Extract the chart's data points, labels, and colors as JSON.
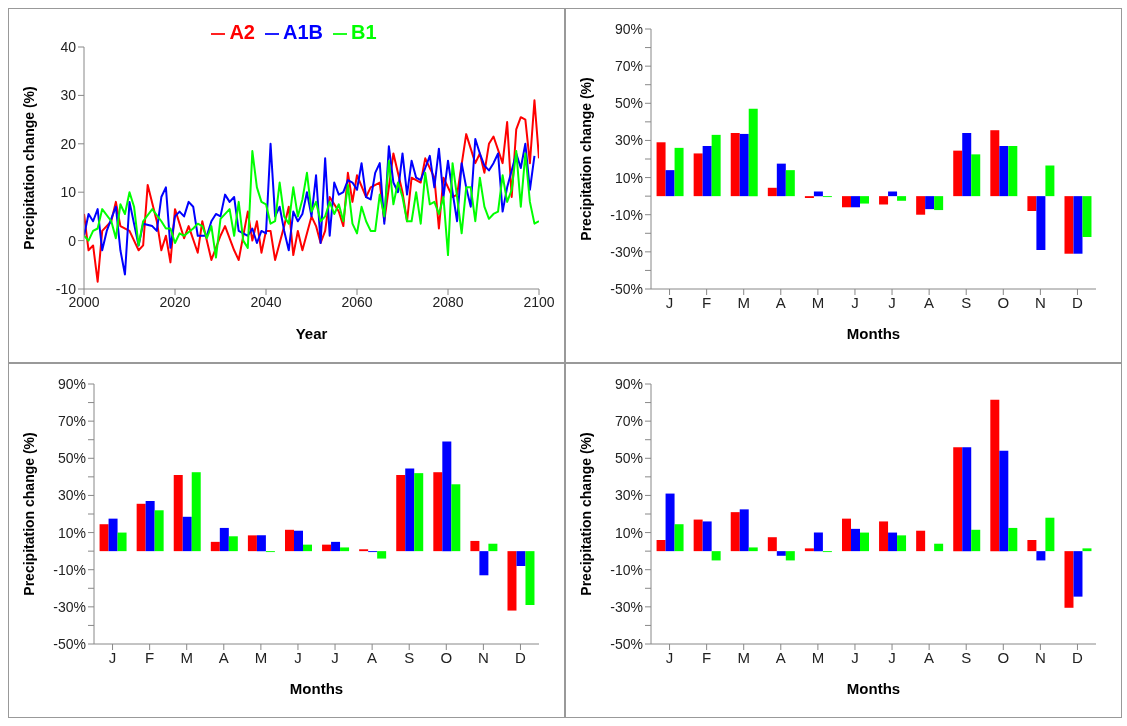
{
  "chart_data": [
    {
      "type": "line",
      "xlabel": "Year",
      "ylabel": "Precipitation change (%)",
      "xlim": [
        2000,
        2100
      ],
      "xticks": [
        2000,
        2020,
        2040,
        2060,
        2080,
        2100
      ],
      "ylim": [
        -10,
        40
      ],
      "yticks": [
        -10,
        0,
        10,
        20,
        30,
        40
      ],
      "legend": "top",
      "grid": false,
      "marker": "none",
      "series": [
        {
          "name": "A2",
          "color": "#ff0000",
          "x": [
            2000,
            2001,
            2002,
            2003,
            2004,
            2006,
            2007,
            2008,
            2010,
            2012,
            2013,
            2014,
            2016,
            2017,
            2018,
            2019,
            2020,
            2022,
            2023,
            2025,
            2026,
            2028,
            2030,
            2031,
            2033,
            2034,
            2036,
            2037,
            2038,
            2039,
            2040,
            2041,
            2042,
            2044,
            2045,
            2046,
            2047,
            2048,
            2050,
            2051,
            2052,
            2053,
            2054,
            2056,
            2057,
            2058,
            2059,
            2060,
            2062,
            2063,
            2065,
            2066,
            2067,
            2068,
            2070,
            2071,
            2072,
            2074,
            2075,
            2077,
            2078,
            2079,
            2081,
            2082,
            2084,
            2086,
            2087,
            2088,
            2089,
            2090,
            2092,
            2093,
            2094,
            2095,
            2096,
            2097,
            2098,
            2099,
            2100
          ],
          "values": [
            5.5,
            -2,
            -1,
            -8.5,
            2,
            4,
            8,
            3,
            2,
            -2,
            -1,
            11.5,
            4,
            -2,
            1,
            -4.5,
            6.5,
            0.5,
            3,
            -2.5,
            4,
            -4,
            1,
            3,
            -2,
            -4,
            6,
            0,
            4,
            -2.5,
            2,
            2,
            -4,
            3,
            7,
            -3,
            2,
            -2,
            5,
            3,
            -0.5,
            2,
            9,
            6,
            3,
            14,
            8,
            13.5,
            9,
            11,
            12,
            4,
            11,
            18,
            10,
            4,
            13,
            12,
            17,
            13,
            2.5,
            13,
            9,
            9.5,
            22,
            16,
            18,
            14,
            20,
            21.5,
            16,
            24.5,
            9,
            23,
            25.5,
            25,
            16,
            29,
            17
          ]
        },
        {
          "name": "A1B",
          "color": "#0000ff",
          "x": [
            2000,
            2001,
            2002,
            2003,
            2004,
            2005,
            2007,
            2008,
            2009,
            2010,
            2012,
            2013,
            2015,
            2016,
            2017,
            2018,
            2019,
            2020,
            2021,
            2022,
            2023,
            2024,
            2025,
            2027,
            2028,
            2029,
            2030,
            2031,
            2032,
            2033,
            2034,
            2036,
            2037,
            2038,
            2039,
            2040,
            2041,
            2042,
            2043,
            2044,
            2045,
            2046,
            2047,
            2048,
            2049,
            2050,
            2051,
            2052,
            2053,
            2054,
            2055,
            2056,
            2057,
            2058,
            2059,
            2060,
            2061,
            2062,
            2063,
            2064,
            2065,
            2066,
            2067,
            2068,
            2069,
            2070,
            2071,
            2072,
            2073,
            2074,
            2075,
            2076,
            2077,
            2078,
            2079,
            2080,
            2081,
            2082,
            2083,
            2084,
            2085,
            2086,
            2087,
            2088,
            2089,
            2090,
            2091,
            2092,
            2093,
            2095,
            2096,
            2097,
            2098,
            2099
          ],
          "values": [
            1,
            5.5,
            4,
            6.5,
            -2,
            2,
            7,
            -2,
            -7,
            8,
            -1,
            3.5,
            3,
            2,
            9,
            11,
            -1.5,
            5,
            6,
            5,
            8,
            7,
            1,
            1,
            4,
            5.5,
            5,
            9.5,
            8,
            9,
            2,
            1,
            2.5,
            -0.5,
            2,
            1.5,
            20,
            5,
            7,
            2,
            -2,
            6,
            4,
            5.5,
            10,
            5,
            13.5,
            -0.5,
            17,
            1,
            12,
            9.5,
            10,
            12.5,
            12,
            10.5,
            16,
            9,
            8.5,
            14,
            16,
            3.5,
            19.5,
            12,
            10,
            18,
            9.5,
            16.5,
            13,
            12.5,
            15,
            17.5,
            11,
            19,
            9,
            16.5,
            10,
            4,
            16,
            11,
            7,
            21,
            18,
            15.5,
            14.5,
            16,
            18,
            6,
            11,
            18,
            15,
            20,
            10.5,
            17.5
          ]
        },
        {
          "name": "B1",
          "color": "#00ff00",
          "x": [
            2000,
            2001,
            2002,
            2003,
            2004,
            2006,
            2007,
            2008,
            2009,
            2010,
            2011,
            2012,
            2013,
            2015,
            2017,
            2018,
            2019,
            2020,
            2021,
            2022,
            2024,
            2025,
            2026,
            2027,
            2028,
            2029,
            2030,
            2032,
            2033,
            2034,
            2035,
            2036,
            2037,
            2038,
            2039,
            2040,
            2041,
            2042,
            2043,
            2044,
            2045,
            2046,
            2047,
            2048,
            2049,
            2050,
            2051,
            2052,
            2053,
            2054,
            2055,
            2056,
            2057,
            2058,
            2059,
            2060,
            2061,
            2062,
            2063,
            2064,
            2065,
            2066,
            2067,
            2068,
            2069,
            2070,
            2071,
            2072,
            2073,
            2074,
            2075,
            2076,
            2077,
            2078,
            2079,
            2080,
            2081,
            2082,
            2083,
            2084,
            2085,
            2086,
            2087,
            2088,
            2089,
            2090,
            2091,
            2092,
            2093,
            2094,
            2095,
            2096,
            2097,
            2098,
            2099,
            2100
          ],
          "values": [
            1,
            0,
            2,
            2.5,
            6.5,
            4,
            0.5,
            7.5,
            5.5,
            10,
            7,
            -1,
            4,
            6.5,
            4,
            2.5,
            2.5,
            -0.5,
            1.5,
            1,
            2.5,
            3.5,
            3,
            0.5,
            3,
            -3.5,
            4.5,
            6.5,
            1,
            8,
            0,
            -1.5,
            18.5,
            11,
            8,
            7.5,
            3.5,
            4,
            12,
            5,
            3.5,
            11,
            5,
            8.5,
            14,
            6,
            8,
            4,
            5,
            8,
            5.5,
            7.5,
            4,
            11.5,
            3.5,
            1.5,
            7,
            4,
            2,
            2,
            9.5,
            5,
            16.5,
            7.5,
            12,
            9,
            4,
            4,
            10,
            3.5,
            14,
            7.5,
            8,
            5.5,
            9,
            -3,
            16,
            9,
            1.5,
            11,
            11,
            4,
            13,
            7,
            4.5,
            5.5,
            6,
            13.5,
            8,
            10.5,
            18.5,
            7,
            18,
            8,
            3.5,
            4
          ]
        }
      ]
    },
    {
      "type": "bar",
      "categories": [
        "J",
        "F",
        "M",
        "A",
        "M",
        "J",
        "J",
        "A",
        "S",
        "O",
        "N",
        "D"
      ],
      "xlabel": "Months",
      "ylabel": "Precipitation change (%)",
      "ylim": [
        -50,
        90
      ],
      "yticks": [
        {
          "value": -50,
          "label": "-50%"
        },
        {
          "value": -40,
          "label": null
        },
        {
          "value": -30,
          "label": "-30%"
        },
        {
          "value": -20,
          "label": null
        },
        {
          "value": -10,
          "label": "-10%"
        },
        {
          "value": 0,
          "label": null
        },
        {
          "value": 10,
          "label": "10%"
        },
        {
          "value": 20,
          "label": null
        },
        {
          "value": 30,
          "label": "30%"
        },
        {
          "value": 40,
          "label": null
        },
        {
          "value": 50,
          "label": "50%"
        },
        {
          "value": 60,
          "label": null
        },
        {
          "value": 70,
          "label": "70%"
        },
        {
          "value": 80,
          "label": null
        },
        {
          "value": 90,
          "label": "90%"
        }
      ],
      "grid": false,
      "legend": false,
      "series": [
        {
          "color": "#ff0000",
          "values": [
            29,
            23,
            34,
            4.5,
            -1,
            -6,
            -4.5,
            -10,
            24.5,
            35.5,
            -8,
            -31
          ]
        },
        {
          "color": "#0000ff",
          "values": [
            14,
            27,
            33.5,
            17.5,
            2.5,
            -6,
            2.5,
            -7,
            34,
            27,
            -29,
            -31
          ]
        },
        {
          "color": "#00ff00",
          "values": [
            26,
            33,
            47,
            14,
            -0.5,
            -4,
            -2.5,
            -7.5,
            22.5,
            27,
            16.5,
            -22
          ]
        }
      ]
    },
    {
      "type": "bar",
      "categories": [
        "J",
        "F",
        "M",
        "A",
        "M",
        "J",
        "J",
        "A",
        "S",
        "O",
        "N",
        "D"
      ],
      "xlabel": "Months",
      "ylabel": "Precipitation change (%)",
      "ylim": [
        -50,
        90
      ],
      "yticks": [
        {
          "value": -50,
          "label": "-50%"
        },
        {
          "value": -40,
          "label": null
        },
        {
          "value": -30,
          "label": "-30%"
        },
        {
          "value": -20,
          "label": null
        },
        {
          "value": -10,
          "label": "-10%"
        },
        {
          "value": 0,
          "label": null
        },
        {
          "value": 10,
          "label": "10%"
        },
        {
          "value": 20,
          "label": null
        },
        {
          "value": 30,
          "label": "30%"
        },
        {
          "value": 40,
          "label": null
        },
        {
          "value": 50,
          "label": "50%"
        },
        {
          "value": 60,
          "label": null
        },
        {
          "value": 70,
          "label": "70%"
        },
        {
          "value": 80,
          "label": null
        },
        {
          "value": 90,
          "label": "90%"
        }
      ],
      "grid": false,
      "legend": false,
      "series": [
        {
          "color": "#ff0000",
          "values": [
            14.5,
            25.5,
            41,
            5,
            8.5,
            11.5,
            3.5,
            1,
            41,
            42.5,
            5.5,
            -32
          ]
        },
        {
          "color": "#0000ff",
          "values": [
            17.5,
            27,
            18.5,
            12.5,
            8.5,
            11,
            5,
            -0.5,
            44.5,
            59,
            -13,
            -8
          ]
        },
        {
          "color": "#00ff00",
          "values": [
            10,
            22,
            42.5,
            8,
            -0.5,
            3.5,
            2,
            -4,
            42,
            36,
            4,
            -29
          ]
        }
      ]
    },
    {
      "type": "bar",
      "categories": [
        "J",
        "F",
        "M",
        "A",
        "M",
        "J",
        "J",
        "A",
        "S",
        "O",
        "N",
        "D"
      ],
      "xlabel": "Months",
      "ylabel": "Precipitation change (%)",
      "ylim": [
        -50,
        90
      ],
      "yticks": [
        {
          "value": -50,
          "label": "-50%"
        },
        {
          "value": -40,
          "label": null
        },
        {
          "value": -30,
          "label": "-30%"
        },
        {
          "value": -20,
          "label": null
        },
        {
          "value": -10,
          "label": "-10%"
        },
        {
          "value": 0,
          "label": null
        },
        {
          "value": 10,
          "label": "10%"
        },
        {
          "value": 20,
          "label": null
        },
        {
          "value": 30,
          "label": "30%"
        },
        {
          "value": 40,
          "label": null
        },
        {
          "value": 50,
          "label": "50%"
        },
        {
          "value": 60,
          "label": null
        },
        {
          "value": 70,
          "label": "70%"
        },
        {
          "value": 80,
          "label": null
        },
        {
          "value": 90,
          "label": "90%"
        }
      ],
      "grid": false,
      "legend": false,
      "series": [
        {
          "color": "#ff0000",
          "values": [
            6,
            17,
            21,
            7.5,
            1.5,
            17.5,
            16,
            11,
            56,
            81.5,
            6,
            -30.5
          ]
        },
        {
          "color": "#0000ff",
          "values": [
            31,
            16,
            22.5,
            -2.5,
            10,
            12,
            10,
            0,
            56,
            54,
            -5,
            -24.5
          ]
        },
        {
          "color": "#00ff00",
          "values": [
            14.5,
            -5,
            2,
            -5,
            -0.5,
            10,
            8.5,
            4,
            11.5,
            12.5,
            18,
            1.5
          ]
        }
      ]
    }
  ]
}
